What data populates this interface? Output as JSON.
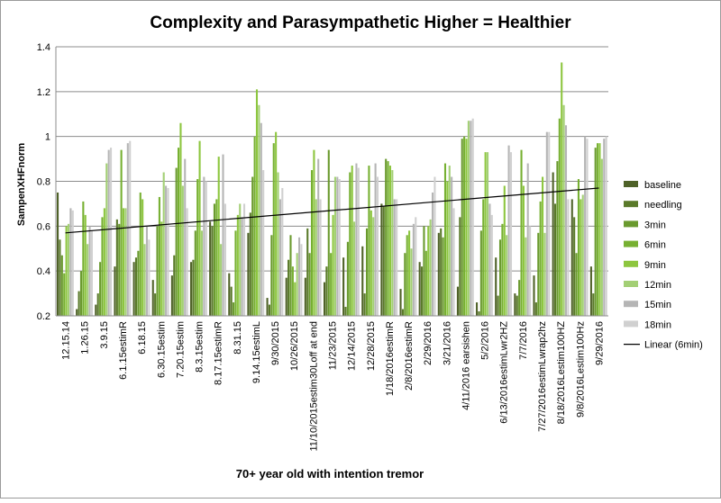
{
  "chart_data": {
    "type": "bar",
    "title": "Complexity and Parasympathetic Higher = Healthier",
    "xlabel": "70+ year old with intention tremor",
    "ylabel": "SampenXHFnorm",
    "ylim": [
      0.2,
      1.4
    ],
    "yticks": [
      "0.2",
      "0.4",
      "0.6",
      "0.8",
      "1",
      "1.2",
      "1.4"
    ],
    "grid": "horizontal",
    "legend_position": "right",
    "categories": [
      "12.15.14",
      "1.26.15",
      "3.9.15",
      "6.1.15estimR",
      "6.18.15",
      "6.30.15estim",
      "7.20.15estim",
      "8.3.15estim",
      "8.17.15estimR",
      "8.31.15",
      "9.14.15estimL",
      "9/30/2015",
      "10/26/2015",
      "11/10/2015estim30Loff at end",
      "11/23/2015",
      "12/14/2015",
      "12/28/2015",
      "1/18/2016estimR",
      "2/8/2016estimR",
      "2/29/2016",
      "3/21/2016",
      "4/11/2016 earsishen",
      "5/2/2016",
      "6/13/2016estimLwr2HZ",
      "7/7/2016",
      "7/27/2016estimLwrap2hz",
      "8/18/2016Lestim100HZ",
      "9/8/2016Lestim100Hz",
      "9/29/2016"
    ],
    "series": [
      {
        "name": "baseline",
        "color": "#4f6228",
        "values": [
          0.75,
          0.23,
          0.25,
          0.42,
          0.44,
          0.36,
          0.38,
          0.44,
          0.62,
          0.39,
          0.57,
          0.28,
          0.37,
          0.37,
          0.35,
          0.46,
          0.51,
          0.7,
          0.32,
          0.44,
          0.57,
          0.33,
          0.26,
          0.46,
          0.3,
          0.38,
          0.84,
          0.72,
          0.42
        ]
      },
      {
        "name": "needling",
        "color": "#5a7a2a",
        "values": [
          0.54,
          0.31,
          0.3,
          0.63,
          0.46,
          0.3,
          0.47,
          0.45,
          0.6,
          0.33,
          0.66,
          0.25,
          0.45,
          0.59,
          0.42,
          0.24,
          0.3,
          0.69,
          0.23,
          0.42,
          0.59,
          0.64,
          0.22,
          0.29,
          0.29,
          0.26,
          0.7,
          0.64,
          0.3
        ]
      },
      {
        "name": "3min",
        "color": "#6a9a2e",
        "values": [
          0.47,
          0.4,
          0.44,
          0.61,
          0.49,
          0.6,
          0.86,
          0.58,
          0.7,
          0.26,
          0.82,
          0.56,
          0.56,
          0.48,
          0.94,
          0.53,
          0.59,
          0.9,
          0.48,
          0.6,
          0.55,
          0.99,
          0.58,
          0.54,
          0.36,
          0.57,
          0.89,
          0.48,
          0.95
        ]
      },
      {
        "name": "6min",
        "color": "#77b032",
        "values": [
          0.39,
          0.71,
          0.64,
          0.94,
          0.75,
          0.73,
          0.95,
          0.81,
          0.72,
          0.58,
          1.0,
          0.97,
          0.42,
          0.85,
          0.48,
          0.84,
          0.87,
          0.89,
          0.56,
          0.49,
          0.88,
          1.0,
          0.72,
          0.61,
          0.94,
          0.71,
          1.08,
          0.81,
          0.97
        ]
      },
      {
        "name": "9min",
        "color": "#8dc63f",
        "values": [
          0.6,
          0.65,
          0.68,
          0.68,
          0.72,
          0.62,
          1.06,
          0.98,
          0.91,
          0.65,
          1.21,
          1.02,
          0.35,
          0.94,
          0.65,
          0.87,
          0.67,
          0.87,
          0.58,
          0.6,
          0.8,
          0.99,
          0.93,
          0.78,
          0.78,
          0.82,
          1.33,
          0.72,
          0.97
        ]
      },
      {
        "name": "12min",
        "color": "#a3cf75",
        "values": [
          0.61,
          0.52,
          0.88,
          0.68,
          0.52,
          0.84,
          0.78,
          0.58,
          0.52,
          0.7,
          1.14,
          0.84,
          0.48,
          0.72,
          0.82,
          0.62,
          0.64,
          0.85,
          0.5,
          0.63,
          0.87,
          1.07,
          0.93,
          0.56,
          0.55,
          0.57,
          1.14,
          0.74,
          0.9
        ]
      },
      {
        "name": "15min",
        "color": "#b5b5b5",
        "values": [
          0.68,
          0.6,
          0.94,
          0.97,
          0.6,
          0.78,
          0.9,
          0.82,
          0.92,
          0.64,
          1.06,
          0.72,
          0.55,
          0.9,
          0.82,
          0.88,
          0.88,
          0.72,
          0.61,
          0.75,
          0.82,
          1.07,
          0.7,
          0.96,
          0.88,
          1.02,
          1.05,
          1.0,
          0.99
        ]
      },
      {
        "name": "18min",
        "color": "#d0d0d0",
        "values": [
          0.67,
          0.58,
          0.95,
          0.98,
          0.54,
          0.77,
          0.68,
          0.8,
          0.7,
          0.7,
          0.85,
          0.77,
          0.52,
          0.72,
          0.81,
          0.86,
          0.82,
          0.72,
          0.64,
          0.82,
          0.68,
          1.08,
          0.65,
          0.93,
          0.6,
          1.02,
          0.72,
          0.99,
          1.0
        ]
      }
    ],
    "trendline": {
      "name": "Linear (6min)",
      "color": "#000000",
      "start": 0.57,
      "end": 0.77
    }
  }
}
